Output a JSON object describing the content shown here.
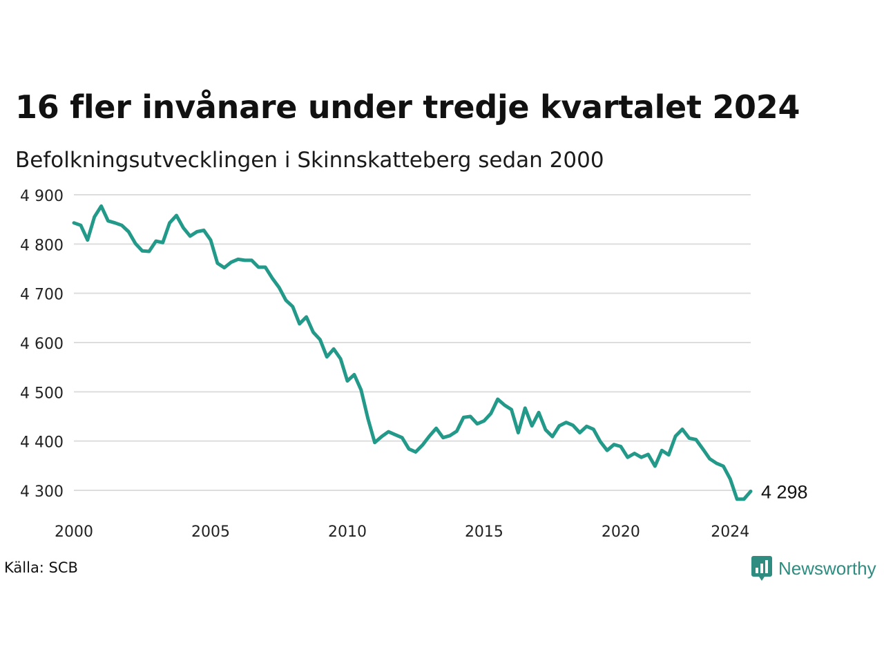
{
  "header": {
    "title": "16 fler invånare under tredje kvartalet 2024",
    "subtitle": "Befolkningsutvecklingen i Skinnskatteberg sedan 2000"
  },
  "footer": {
    "source": "Källa: SCB",
    "brand": "Newsworthy",
    "brand_icon": "bar-chart-speech-bubble-icon"
  },
  "colors": {
    "line": "#23998a",
    "grid": "#dddddd",
    "brand": "#2f8c80"
  },
  "chart_data": {
    "type": "line",
    "title": "16 fler invånare under tredje kvartalet 2024",
    "subtitle": "Befolkningsutvecklingen i Skinnskatteberg sedan 2000",
    "x_ticks": [
      "2000",
      "2005",
      "2010",
      "2015",
      "2020",
      "2024"
    ],
    "y_ticks": [
      "4 300",
      "4 400",
      "4 500",
      "4 600",
      "4 700",
      "4 800",
      "4 900"
    ],
    "ylim": [
      4250,
      4900
    ],
    "xlim": [
      2000.0,
      2024.75
    ],
    "grid": "horizontal",
    "end_label": "4 298",
    "series": [
      {
        "x": [
          2000.0,
          2000.25,
          2000.5,
          2000.75,
          2001.0,
          2001.25,
          2001.5,
          2001.75,
          2002.0,
          2002.25,
          2002.5,
          2002.75,
          2003.0,
          2003.25,
          2003.5,
          2003.75,
          2004.0,
          2004.25,
          2004.5,
          2004.75,
          2005.0,
          2005.25,
          2005.5,
          2005.75,
          2006.0,
          2006.25,
          2006.5,
          2006.75,
          2007.0,
          2007.25,
          2007.5,
          2007.75,
          2008.0,
          2008.25,
          2008.5,
          2008.75,
          2009.0,
          2009.25,
          2009.5,
          2009.75,
          2010.0,
          2010.25,
          2010.5,
          2010.75,
          2011.0,
          2011.25,
          2011.5,
          2011.75,
          2012.0,
          2012.25,
          2012.5,
          2012.75,
          2013.0,
          2013.25,
          2013.5,
          2013.75,
          2014.0,
          2014.25,
          2014.5,
          2014.75,
          2015.0,
          2015.25,
          2015.5,
          2015.75,
          2016.0,
          2016.25,
          2016.5,
          2016.75,
          2017.0,
          2017.25,
          2017.5,
          2017.75,
          2018.0,
          2018.25,
          2018.5,
          2018.75,
          2019.0,
          2019.25,
          2019.5,
          2019.75,
          2020.0,
          2020.25,
          2020.5,
          2020.75,
          2021.0,
          2021.25,
          2021.5,
          2021.75,
          2022.0,
          2022.25,
          2022.5,
          2022.75,
          2023.0,
          2023.25,
          2023.5,
          2023.75,
          2024.0,
          2024.25,
          2024.5,
          2024.75
        ],
        "y": [
          4843,
          4838,
          4808,
          4855,
          4877,
          4847,
          4843,
          4838,
          4825,
          4801,
          4786,
          4785,
          4806,
          4803,
          4843,
          4858,
          4833,
          4816,
          4825,
          4828,
          4808,
          4761,
          4752,
          4763,
          4769,
          4767,
          4767,
          4753,
          4753,
          4731,
          4712,
          4686,
          4673,
          4638,
          4652,
          4621,
          4606,
          4571,
          4587,
          4567,
          4522,
          4535,
          4504,
          4446,
          4397,
          4409,
          4419,
          4413,
          4407,
          4384,
          4378,
          4392,
          4410,
          4426,
          4407,
          4411,
          4420,
          4448,
          4450,
          4435,
          4441,
          4456,
          4485,
          4473,
          4464,
          4417,
          4467,
          4431,
          4458,
          4423,
          4409,
          4431,
          4438,
          4432,
          4417,
          4430,
          4424,
          4399,
          4381,
          4393,
          4389,
          4367,
          4375,
          4367,
          4373,
          4349,
          4381,
          4372,
          4410,
          4424,
          4406,
          4403,
          4384,
          4364,
          4355,
          4349,
          4323,
          4282,
          4282,
          4298
        ]
      }
    ]
  }
}
